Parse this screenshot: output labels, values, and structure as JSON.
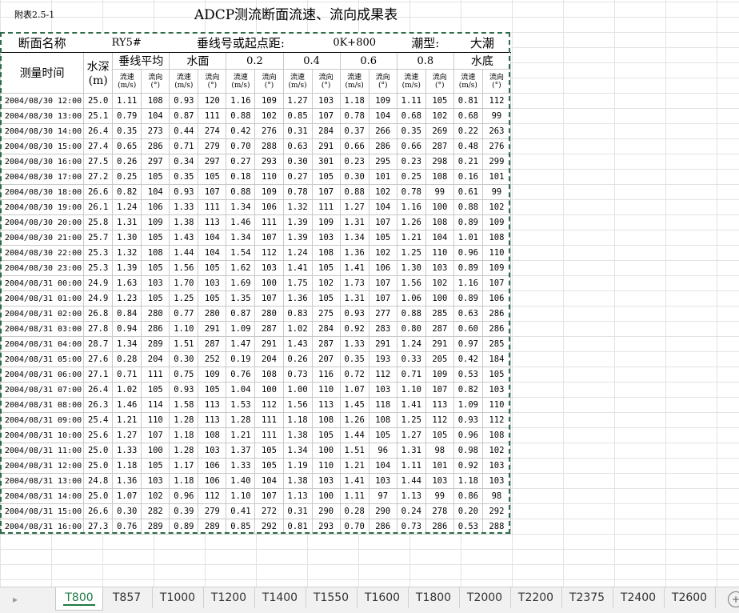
{
  "appendix": "附表2.5-1",
  "title": "ADCP测流断面流速、流向成果表",
  "info": {
    "section_label": "断面名称",
    "section_value": "RY5#",
    "line_label": "垂线号或起点距:",
    "line_value": "0K+800",
    "tide_label": "潮型:",
    "tide_value": "大潮"
  },
  "headers": {
    "time": "测量时间",
    "depth": "水深",
    "depth_unit": "(m)",
    "positions": [
      "垂线平均",
      "水面",
      "0.2",
      "0.4",
      "0.6",
      "0.8",
      "水底"
    ],
    "speed": "流速",
    "speed_unit": "(m/s)",
    "dir": "流向",
    "dir_unit": "(°)"
  },
  "rows": [
    [
      "2004/08/30 12:00",
      "25.0",
      "1.11",
      "108",
      "0.93",
      "120",
      "1.16",
      "109",
      "1.27",
      "103",
      "1.18",
      "109",
      "1.11",
      "105",
      "0.81",
      "112"
    ],
    [
      "2004/08/30 13:00",
      "25.1",
      "0.79",
      "104",
      "0.87",
      "111",
      "0.88",
      "102",
      "0.85",
      "107",
      "0.78",
      "104",
      "0.68",
      "102",
      "0.68",
      "99"
    ],
    [
      "2004/08/30 14:00",
      "26.4",
      "0.35",
      "273",
      "0.44",
      "274",
      "0.42",
      "276",
      "0.31",
      "284",
      "0.37",
      "266",
      "0.35",
      "269",
      "0.22",
      "263"
    ],
    [
      "2004/08/30 15:00",
      "27.4",
      "0.65",
      "286",
      "0.71",
      "279",
      "0.70",
      "288",
      "0.63",
      "291",
      "0.66",
      "286",
      "0.66",
      "287",
      "0.48",
      "276"
    ],
    [
      "2004/08/30 16:00",
      "27.5",
      "0.26",
      "297",
      "0.34",
      "297",
      "0.27",
      "293",
      "0.30",
      "301",
      "0.23",
      "295",
      "0.23",
      "298",
      "0.21",
      "299"
    ],
    [
      "2004/08/30 17:00",
      "27.2",
      "0.25",
      "105",
      "0.35",
      "105",
      "0.18",
      "110",
      "0.27",
      "105",
      "0.30",
      "101",
      "0.25",
      "108",
      "0.16",
      "101"
    ],
    [
      "2004/08/30 18:00",
      "26.6",
      "0.82",
      "104",
      "0.93",
      "107",
      "0.88",
      "109",
      "0.78",
      "107",
      "0.88",
      "102",
      "0.78",
      "99",
      "0.61",
      "99"
    ],
    [
      "2004/08/30 19:00",
      "26.1",
      "1.24",
      "106",
      "1.33",
      "111",
      "1.34",
      "106",
      "1.32",
      "111",
      "1.27",
      "104",
      "1.16",
      "100",
      "0.88",
      "102"
    ],
    [
      "2004/08/30 20:00",
      "25.8",
      "1.31",
      "109",
      "1.38",
      "113",
      "1.46",
      "111",
      "1.39",
      "109",
      "1.31",
      "107",
      "1.26",
      "108",
      "0.89",
      "109"
    ],
    [
      "2004/08/30 21:00",
      "25.7",
      "1.30",
      "105",
      "1.43",
      "104",
      "1.34",
      "107",
      "1.39",
      "103",
      "1.34",
      "105",
      "1.21",
      "104",
      "1.01",
      "108"
    ],
    [
      "2004/08/30 22:00",
      "25.3",
      "1.32",
      "108",
      "1.44",
      "104",
      "1.54",
      "112",
      "1.24",
      "108",
      "1.36",
      "102",
      "1.25",
      "110",
      "0.96",
      "110"
    ],
    [
      "2004/08/30 23:00",
      "25.3",
      "1.39",
      "105",
      "1.56",
      "105",
      "1.62",
      "103",
      "1.41",
      "105",
      "1.41",
      "106",
      "1.30",
      "103",
      "0.89",
      "109"
    ],
    [
      "2004/08/31 00:00",
      "24.9",
      "1.63",
      "103",
      "1.70",
      "103",
      "1.69",
      "100",
      "1.75",
      "102",
      "1.73",
      "107",
      "1.56",
      "102",
      "1.16",
      "107"
    ],
    [
      "2004/08/31 01:00",
      "24.9",
      "1.23",
      "105",
      "1.25",
      "105",
      "1.35",
      "107",
      "1.36",
      "105",
      "1.31",
      "107",
      "1.06",
      "100",
      "0.89",
      "106"
    ],
    [
      "2004/08/31 02:00",
      "26.8",
      "0.84",
      "280",
      "0.77",
      "280",
      "0.87",
      "280",
      "0.83",
      "275",
      "0.93",
      "277",
      "0.88",
      "285",
      "0.63",
      "286"
    ],
    [
      "2004/08/31 03:00",
      "27.8",
      "0.94",
      "286",
      "1.10",
      "291",
      "1.09",
      "287",
      "1.02",
      "284",
      "0.92",
      "283",
      "0.80",
      "287",
      "0.60",
      "286"
    ],
    [
      "2004/08/31 04:00",
      "28.7",
      "1.34",
      "289",
      "1.51",
      "287",
      "1.47",
      "291",
      "1.43",
      "287",
      "1.33",
      "291",
      "1.24",
      "291",
      "0.97",
      "285"
    ],
    [
      "2004/08/31 05:00",
      "27.6",
      "0.28",
      "204",
      "0.30",
      "252",
      "0.19",
      "204",
      "0.26",
      "207",
      "0.35",
      "193",
      "0.33",
      "205",
      "0.42",
      "184"
    ],
    [
      "2004/08/31 06:00",
      "27.1",
      "0.71",
      "111",
      "0.75",
      "109",
      "0.76",
      "108",
      "0.73",
      "116",
      "0.72",
      "112",
      "0.71",
      "109",
      "0.53",
      "105"
    ],
    [
      "2004/08/31 07:00",
      "26.4",
      "1.02",
      "105",
      "0.93",
      "105",
      "1.04",
      "100",
      "1.00",
      "110",
      "1.07",
      "103",
      "1.10",
      "107",
      "0.82",
      "103"
    ],
    [
      "2004/08/31 08:00",
      "26.3",
      "1.46",
      "114",
      "1.58",
      "113",
      "1.53",
      "112",
      "1.56",
      "113",
      "1.45",
      "118",
      "1.41",
      "113",
      "1.09",
      "110"
    ],
    [
      "2004/08/31 09:00",
      "25.4",
      "1.21",
      "110",
      "1.28",
      "113",
      "1.28",
      "111",
      "1.18",
      "108",
      "1.26",
      "108",
      "1.25",
      "112",
      "0.93",
      "112"
    ],
    [
      "2004/08/31 10:00",
      "25.6",
      "1.27",
      "107",
      "1.18",
      "108",
      "1.21",
      "111",
      "1.38",
      "105",
      "1.44",
      "105",
      "1.27",
      "105",
      "0.96",
      "108"
    ],
    [
      "2004/08/31 11:00",
      "25.0",
      "1.33",
      "100",
      "1.28",
      "103",
      "1.37",
      "105",
      "1.34",
      "100",
      "1.51",
      "96",
      "1.31",
      "98",
      "0.98",
      "102"
    ],
    [
      "2004/08/31 12:00",
      "25.0",
      "1.18",
      "105",
      "1.17",
      "106",
      "1.33",
      "105",
      "1.19",
      "110",
      "1.21",
      "104",
      "1.11",
      "101",
      "0.92",
      "103"
    ],
    [
      "2004/08/31 13:00",
      "24.8",
      "1.36",
      "103",
      "1.18",
      "106",
      "1.40",
      "104",
      "1.38",
      "103",
      "1.41",
      "103",
      "1.44",
      "103",
      "1.18",
      "103"
    ],
    [
      "2004/08/31 14:00",
      "25.0",
      "1.07",
      "102",
      "0.96",
      "112",
      "1.10",
      "107",
      "1.13",
      "100",
      "1.11",
      "97",
      "1.13",
      "99",
      "0.86",
      "98"
    ],
    [
      "2004/08/31 15:00",
      "26.6",
      "0.30",
      "282",
      "0.39",
      "279",
      "0.41",
      "272",
      "0.31",
      "290",
      "0.28",
      "290",
      "0.24",
      "278",
      "0.20",
      "292"
    ],
    [
      "2004/08/31 16:00",
      "27.3",
      "0.76",
      "289",
      "0.89",
      "289",
      "0.85",
      "292",
      "0.81",
      "293",
      "0.70",
      "286",
      "0.73",
      "286",
      "0.53",
      "288"
    ]
  ],
  "tabs": [
    "T800",
    "T857",
    "T1000",
    "T1200",
    "T1400",
    "T1550",
    "T1600",
    "T1800",
    "T2000",
    "T2200",
    "T2375",
    "T2400",
    "T2600"
  ],
  "active_tab": "T800"
}
